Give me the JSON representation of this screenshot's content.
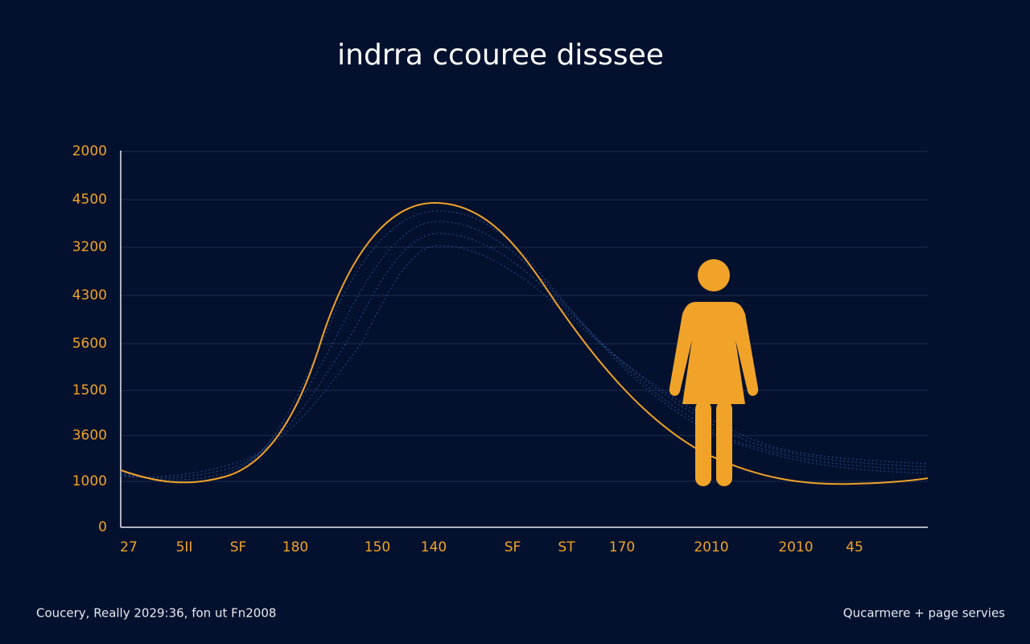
{
  "title": "indrra ccouree  disssee",
  "y_axis_labels": [
    "2000",
    "4500",
    "3200",
    "4300",
    "5600",
    "1500",
    "3600",
    "1000",
    "0"
  ],
  "x_axis_labels": [
    "27",
    "5II",
    "SF",
    "180",
    "150",
    "140",
    "SF",
    "ST",
    "170",
    "2010",
    "2010",
    "45"
  ],
  "footer": {
    "left": "Coucery, Really 2029:36, fon ut Fn2008",
    "right": "Qucarmere + page servies"
  }
}
